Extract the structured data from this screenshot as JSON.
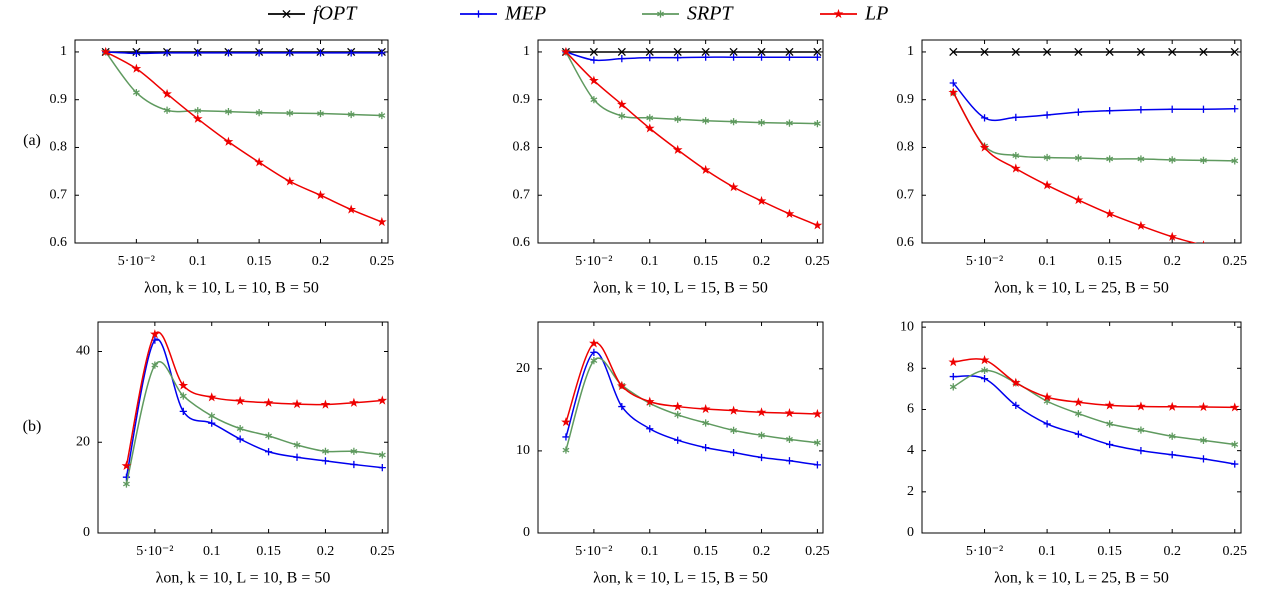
{
  "chart_data": [
    {
      "type": "line",
      "panel_label": "(a)",
      "xlabel": "λon, k = 10, L = 10, B = 50",
      "x": [
        0.025,
        0.05,
        0.075,
        0.1,
        0.125,
        0.15,
        0.175,
        0.2,
        0.225,
        0.25
      ],
      "xlim": [
        0,
        0.255
      ],
      "xticks": [
        {
          "value": 0.05,
          "label": "5·10⁻²"
        },
        0.1,
        0.15,
        0.2,
        0.25
      ],
      "ylim": [
        0.6,
        1.025
      ],
      "yticks": [
        0.6,
        0.7,
        0.8,
        0.9,
        1
      ],
      "series": [
        {
          "name": "fOPT",
          "color": "#000000",
          "marker": "x",
          "values": [
            1,
            1,
            1,
            1,
            1,
            1,
            1,
            1,
            1,
            1
          ]
        },
        {
          "name": "MEP",
          "color": "#0000ee",
          "marker": "plus",
          "values": [
            1,
            0.997,
            0.998,
            0.998,
            0.998,
            0.998,
            0.998,
            0.998,
            0.998,
            0.998
          ]
        },
        {
          "name": "SRPT",
          "color": "#5f9a5f",
          "marker": "asterisk",
          "values": [
            1,
            0.915,
            0.878,
            0.877,
            0.875,
            0.873,
            0.872,
            0.871,
            0.869,
            0.867
          ]
        },
        {
          "name": "LP",
          "color": "#ee0000",
          "marker": "star",
          "values": [
            1,
            0.965,
            0.912,
            0.86,
            0.812,
            0.769,
            0.729,
            0.7,
            0.67,
            0.644
          ]
        }
      ]
    },
    {
      "type": "line",
      "xlabel": "λon, k = 10, L = 15, B = 50",
      "x": [
        0.025,
        0.05,
        0.075,
        0.1,
        0.125,
        0.15,
        0.175,
        0.2,
        0.225,
        0.25
      ],
      "xlim": [
        0,
        0.255
      ],
      "xticks": [
        {
          "value": 0.05,
          "label": "5·10⁻²"
        },
        0.1,
        0.15,
        0.2,
        0.25
      ],
      "ylim": [
        0.6,
        1.025
      ],
      "yticks": [
        0.6,
        0.7,
        0.8,
        0.9,
        1
      ],
      "series": [
        {
          "name": "fOPT",
          "color": "#000000",
          "marker": "x",
          "values": [
            1,
            1,
            1,
            1,
            1,
            1,
            1,
            1,
            1,
            1
          ]
        },
        {
          "name": "MEP",
          "color": "#0000ee",
          "marker": "plus",
          "values": [
            1,
            0.983,
            0.986,
            0.988,
            0.988,
            0.989,
            0.989,
            0.989,
            0.989,
            0.989
          ]
        },
        {
          "name": "SRPT",
          "color": "#5f9a5f",
          "marker": "asterisk",
          "values": [
            1,
            0.9,
            0.866,
            0.862,
            0.859,
            0.856,
            0.854,
            0.852,
            0.851,
            0.85
          ]
        },
        {
          "name": "LP",
          "color": "#ee0000",
          "marker": "star",
          "values": [
            1,
            0.94,
            0.89,
            0.84,
            0.795,
            0.753,
            0.717,
            0.688,
            0.661,
            0.637
          ]
        }
      ]
    },
    {
      "type": "line",
      "xlabel": "λon, k = 10, L = 25, B = 50",
      "x": [
        0.025,
        0.05,
        0.075,
        0.1,
        0.125,
        0.15,
        0.175,
        0.2,
        0.225,
        0.25
      ],
      "xlim": [
        0,
        0.255
      ],
      "xticks": [
        {
          "value": 0.05,
          "label": "5·10⁻²"
        },
        0.1,
        0.15,
        0.2,
        0.25
      ],
      "ylim": [
        0.6,
        1.025
      ],
      "yticks": [
        0.6,
        0.7,
        0.8,
        0.9,
        1
      ],
      "series": [
        {
          "name": "fOPT",
          "color": "#000000",
          "marker": "x",
          "values": [
            1,
            1,
            1,
            1,
            1,
            1,
            1,
            1,
            1,
            1
          ]
        },
        {
          "name": "MEP",
          "color": "#0000ee",
          "marker": "plus",
          "values": [
            0.935,
            0.862,
            0.863,
            0.868,
            0.874,
            0.877,
            0.879,
            0.88,
            0.88,
            0.881
          ]
        },
        {
          "name": "SRPT",
          "color": "#5f9a5f",
          "marker": "asterisk",
          "values": [
            0.915,
            0.803,
            0.783,
            0.779,
            0.778,
            0.776,
            0.776,
            0.774,
            0.773,
            0.772
          ]
        },
        {
          "name": "LP",
          "color": "#ee0000",
          "marker": "star",
          "values": [
            0.915,
            0.8,
            0.756,
            0.721,
            0.69,
            0.661,
            0.636,
            0.613,
            0.595,
            0.578
          ]
        }
      ]
    },
    {
      "type": "line",
      "panel_label": "(b)",
      "xlabel": "λon, k = 10, L = 10, B = 50",
      "x": [
        0.025,
        0.05,
        0.075,
        0.1,
        0.125,
        0.15,
        0.175,
        0.2,
        0.225,
        0.25
      ],
      "xlim": [
        0,
        0.255
      ],
      "xticks": [
        {
          "value": 0.05,
          "label": "5·10⁻²"
        },
        0.1,
        0.15,
        0.2,
        0.25
      ],
      "ylim": [
        0,
        46.5
      ],
      "yticks": [
        0,
        20,
        40
      ],
      "series": [
        {
          "name": "MEP",
          "color": "#0000ee",
          "marker": "plus",
          "values": [
            12.3,
            42.5,
            26.8,
            24.2,
            20.7,
            17.9,
            16.7,
            15.9,
            15.1,
            14.4
          ]
        },
        {
          "name": "SRPT",
          "color": "#5f9a5f",
          "marker": "asterisk",
          "values": [
            10.8,
            37,
            30.2,
            25.8,
            23,
            21.4,
            19.4,
            18,
            18,
            17.2
          ]
        },
        {
          "name": "LP",
          "color": "#ee0000",
          "marker": "star",
          "values": [
            14.8,
            43.8,
            32.5,
            29.9,
            29.1,
            28.7,
            28.4,
            28.3,
            28.7,
            29.2
          ]
        }
      ]
    },
    {
      "type": "line",
      "xlabel": "λon, k = 10, L = 15, B = 50",
      "x": [
        0.025,
        0.05,
        0.075,
        0.1,
        0.125,
        0.15,
        0.175,
        0.2,
        0.225,
        0.25
      ],
      "xlim": [
        0,
        0.255
      ],
      "xticks": [
        {
          "value": 0.05,
          "label": "5·10⁻²"
        },
        0.1,
        0.15,
        0.2,
        0.25
      ],
      "ylim": [
        0,
        25.7
      ],
      "yticks": [
        0,
        10,
        20
      ],
      "series": [
        {
          "name": "MEP",
          "color": "#0000ee",
          "marker": "plus",
          "values": [
            11.7,
            22,
            15.4,
            12.7,
            11.3,
            10.4,
            9.8,
            9.2,
            8.8,
            8.3
          ]
        },
        {
          "name": "SRPT",
          "color": "#5f9a5f",
          "marker": "asterisk",
          "values": [
            10.1,
            21,
            18,
            15.8,
            14.4,
            13.4,
            12.5,
            11.9,
            11.4,
            11
          ]
        },
        {
          "name": "LP",
          "color": "#ee0000",
          "marker": "star",
          "values": [
            13.5,
            23.1,
            17.9,
            16,
            15.4,
            15.1,
            14.9,
            14.7,
            14.6,
            14.5
          ]
        }
      ]
    },
    {
      "type": "line",
      "xlabel": "λon, k = 10, L = 25, B = 50",
      "x": [
        0.025,
        0.05,
        0.075,
        0.1,
        0.125,
        0.15,
        0.175,
        0.2,
        0.225,
        0.25
      ],
      "xlim": [
        0,
        0.255
      ],
      "xticks": [
        {
          "value": 0.05,
          "label": "5·10⁻²"
        },
        0.1,
        0.15,
        0.2,
        0.25
      ],
      "ylim": [
        0,
        10.25
      ],
      "yticks": [
        0,
        2,
        4,
        6,
        8,
        10
      ],
      "series": [
        {
          "name": "MEP",
          "color": "#0000ee",
          "marker": "plus",
          "values": [
            7.6,
            7.5,
            6.2,
            5.3,
            4.8,
            4.3,
            4.0,
            3.8,
            3.6,
            3.35
          ]
        },
        {
          "name": "SRPT",
          "color": "#5f9a5f",
          "marker": "asterisk",
          "values": [
            7.1,
            7.9,
            7.3,
            6.4,
            5.8,
            5.3,
            5.0,
            4.7,
            4.5,
            4.3
          ]
        },
        {
          "name": "LP",
          "color": "#ee0000",
          "marker": "star",
          "values": [
            8.3,
            8.4,
            7.3,
            6.6,
            6.35,
            6.2,
            6.15,
            6.13,
            6.12,
            6.1
          ]
        }
      ]
    }
  ]
}
